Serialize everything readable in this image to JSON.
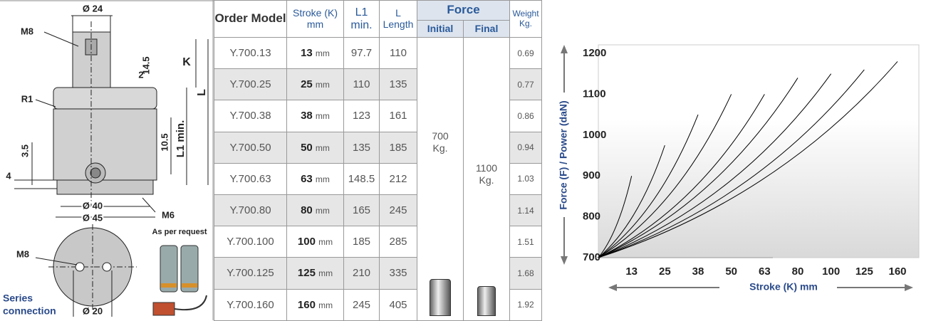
{
  "drawing": {
    "labels": {
      "d24": "Ø 24",
      "m8_top": "M8",
      "d14_5": "14.5",
      "k": "K",
      "d2": "2",
      "r1": "R1",
      "l": "L",
      "d10_5": "10.5",
      "l1min": "L1 min.",
      "d3_5": "3.5",
      "d4": "4",
      "d40": "Ø 40",
      "d45": "Ø 45",
      "m6": "M6",
      "request": "As per request",
      "m8_bottom": "M8",
      "series": "Series",
      "connection": "connection",
      "d20": "Ø 20"
    }
  },
  "table": {
    "header": {
      "model": "Order Model",
      "stroke": "Stroke (K) mm",
      "l1": "L1 min.",
      "l": "L Length",
      "force": "Force",
      "initial": "Initial",
      "final": "Final",
      "weight": "Weight Kg."
    },
    "stroke_unit": "mm",
    "rows": [
      {
        "model": "Y.700.13",
        "stroke": 13,
        "l1": 97.7,
        "l": 110,
        "weight": 0.69
      },
      {
        "model": "Y.700.25",
        "stroke": 25,
        "l1": 110,
        "l": 135,
        "weight": 0.77
      },
      {
        "model": "Y.700.38",
        "stroke": 38,
        "l1": 123,
        "l": 161,
        "weight": 0.86
      },
      {
        "model": "Y.700.50",
        "stroke": 50,
        "l1": 135,
        "l": 185,
        "weight": 0.94
      },
      {
        "model": "Y.700.63",
        "stroke": 63,
        "l1": 148.5,
        "l": 212,
        "weight": 1.03
      },
      {
        "model": "Y.700.80",
        "stroke": 80,
        "l1": 165,
        "l": 245,
        "weight": 1.14
      },
      {
        "model": "Y.700.100",
        "stroke": 100,
        "l1": 185,
        "l": 285,
        "weight": 1.51
      },
      {
        "model": "Y.700.125",
        "stroke": 125,
        "l1": 210,
        "l": 335,
        "weight": 1.68
      },
      {
        "model": "Y.700.160",
        "stroke": 160,
        "l1": 245,
        "l": 405,
        "weight": 1.92
      }
    ],
    "force_initial": "700 Kg.",
    "force_final": "1100 Kg."
  },
  "chart_data": {
    "type": "curves",
    "ylabel": "Force (F) / Power (daN)",
    "xlabel": "Stroke (K) mm",
    "categories": [
      13,
      25,
      38,
      50,
      63,
      80,
      100,
      125,
      160
    ],
    "values": [
      900,
      975,
      1050,
      1100,
      1100,
      1140,
      1150,
      1160,
      1180
    ],
    "color": "#000000",
    "ylim": [
      700,
      1200
    ],
    "yticks": [
      700,
      800,
      900,
      1000,
      1100,
      1200
    ]
  }
}
